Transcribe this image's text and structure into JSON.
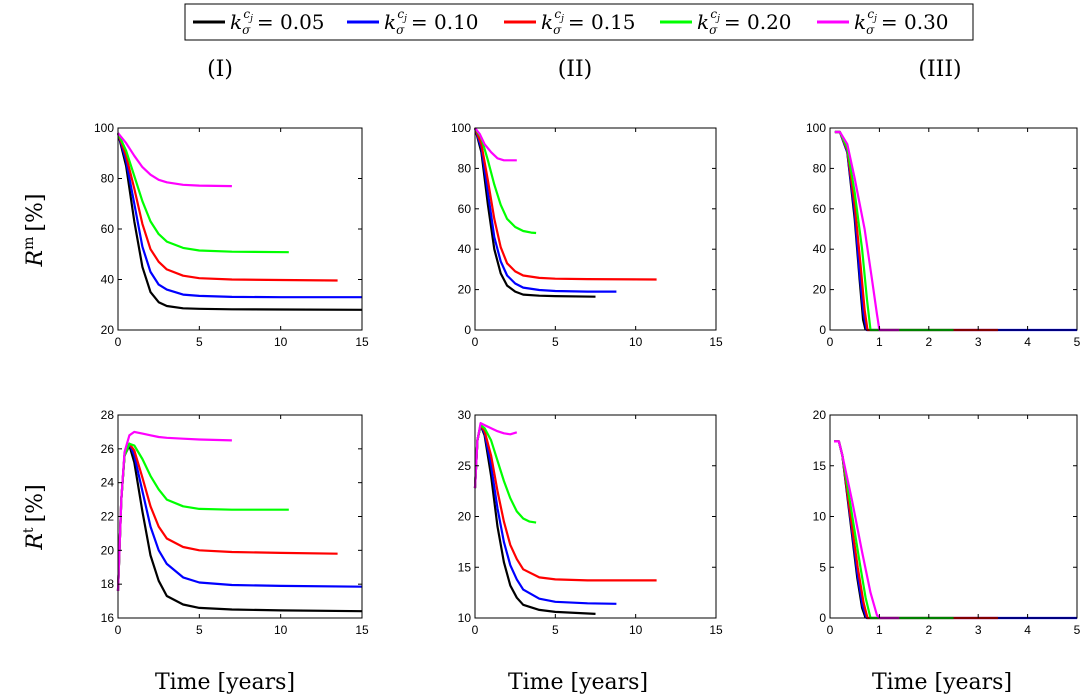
{
  "legend": {
    "entries": [
      {
        "label": "0.05",
        "color": "#000000"
      },
      {
        "label": "0.10",
        "color": "#0000ff"
      },
      {
        "label": "0.15",
        "color": "#ff0000"
      },
      {
        "label": "0.20",
        "color": "#00ff00"
      },
      {
        "label": "0.30",
        "color": "#ff00ff"
      }
    ]
  },
  "columns": [
    "(I)",
    "(II)",
    "(III)"
  ],
  "row_labels": [
    {
      "base": "R",
      "sup": "m",
      "unit": "[%]"
    },
    {
      "base": "R",
      "sup": "t",
      "unit": "[%]"
    }
  ],
  "x_labels": [
    "Time [years]",
    "Time [years]",
    "Time [years]"
  ],
  "chart_data": [
    {
      "type": "line",
      "panel": "I-Rm",
      "xlim": [
        0,
        15
      ],
      "ylim": [
        20,
        100
      ],
      "xticks": [
        0,
        5,
        10,
        15
      ],
      "yticks": [
        20,
        40,
        60,
        80,
        100
      ],
      "series": [
        {
          "name": "0.05",
          "color": "#000000",
          "x": [
            0,
            0.5,
            1,
            1.5,
            2,
            2.5,
            3,
            4,
            5,
            7,
            10,
            15
          ],
          "y": [
            98,
            85,
            63,
            45,
            35,
            31,
            29.5,
            28.6,
            28.4,
            28.2,
            28.1,
            28
          ]
        },
        {
          "name": "0.10",
          "color": "#0000ff",
          "x": [
            0,
            0.5,
            1,
            1.5,
            2,
            2.5,
            3,
            4,
            5,
            7,
            10,
            15
          ],
          "y": [
            98,
            87,
            70,
            53,
            43,
            38,
            36,
            34,
            33.5,
            33.1,
            33,
            33
          ]
        },
        {
          "name": "0.15",
          "color": "#ff0000",
          "x": [
            0,
            0.5,
            1,
            1.5,
            2,
            2.5,
            3,
            4,
            5,
            7,
            10,
            13.5
          ],
          "y": [
            98,
            89,
            76,
            62,
            52,
            47,
            44,
            41.5,
            40.5,
            40,
            39.8,
            39.6
          ]
        },
        {
          "name": "0.20",
          "color": "#00ff00",
          "x": [
            0,
            0.5,
            1,
            1.5,
            2,
            2.5,
            3,
            4,
            5,
            7,
            10.5
          ],
          "y": [
            98,
            91,
            81,
            71,
            63,
            58,
            55,
            52.5,
            51.5,
            51,
            50.8
          ]
        },
        {
          "name": "0.30",
          "color": "#ff00ff",
          "x": [
            0,
            0.5,
            1,
            1.5,
            2,
            2.5,
            3,
            4,
            5,
            7
          ],
          "y": [
            98,
            94,
            89,
            84.5,
            81.5,
            79.5,
            78.5,
            77.5,
            77.2,
            77
          ]
        }
      ]
    },
    {
      "type": "line",
      "panel": "II-Rm",
      "xlim": [
        0,
        15
      ],
      "ylim": [
        0,
        100
      ],
      "xticks": [
        0,
        5,
        10,
        15
      ],
      "yticks": [
        0,
        20,
        40,
        60,
        80,
        100
      ],
      "series": [
        {
          "name": "0.05",
          "color": "#000000",
          "x": [
            0,
            0.4,
            0.8,
            1.2,
            1.6,
            2,
            2.5,
            3,
            4,
            5,
            7.5
          ],
          "y": [
            100,
            88,
            62,
            40,
            28,
            22,
            19,
            17.5,
            17,
            16.8,
            16.5
          ]
        },
        {
          "name": "0.10",
          "color": "#0000ff",
          "x": [
            0,
            0.4,
            0.8,
            1.2,
            1.6,
            2,
            2.5,
            3,
            4,
            5,
            7,
            8.8
          ],
          "y": [
            100,
            90,
            68,
            46,
            34,
            27,
            23,
            21,
            19.8,
            19.3,
            19,
            19
          ]
        },
        {
          "name": "0.15",
          "color": "#ff0000",
          "x": [
            0,
            0.4,
            0.8,
            1.2,
            1.6,
            2,
            2.5,
            3,
            4,
            5,
            7,
            11.3
          ],
          "y": [
            100,
            92,
            74,
            55,
            41,
            33,
            29,
            27,
            25.8,
            25.4,
            25.2,
            25
          ]
        },
        {
          "name": "0.20",
          "color": "#00ff00",
          "x": [
            0,
            0.4,
            0.8,
            1.2,
            1.6,
            2,
            2.5,
            3,
            3.5,
            3.8
          ],
          "y": [
            100,
            95,
            84,
            72,
            62,
            55,
            51,
            49,
            48.2,
            48
          ]
        },
        {
          "name": "0.30",
          "color": "#ff00ff",
          "x": [
            0,
            0.3,
            0.6,
            1,
            1.4,
            1.8,
            2.2,
            2.6
          ],
          "y": [
            100,
            97,
            92,
            88,
            85,
            84,
            84,
            84
          ]
        }
      ]
    },
    {
      "type": "line",
      "panel": "III-Rm",
      "xlim": [
        0,
        5
      ],
      "ylim": [
        0,
        100
      ],
      "xticks": [
        0,
        1,
        2,
        3,
        4,
        5
      ],
      "yticks": [
        0,
        20,
        40,
        60,
        80,
        100
      ],
      "series": [
        {
          "name": "0.05",
          "color": "#000000",
          "x": [
            0.1,
            0.2,
            0.35,
            0.5,
            0.6,
            0.67,
            0.72
          ],
          "y": [
            98,
            98,
            88,
            55,
            25,
            5,
            0
          ]
        },
        {
          "name": "0.10",
          "color": "#0000ff",
          "x": [
            0.1,
            0.2,
            0.35,
            0.5,
            0.6,
            0.68,
            0.74,
            1.0,
            3.0,
            5.0
          ],
          "y": [
            98,
            98,
            88,
            58,
            28,
            8,
            0,
            0,
            0,
            0
          ]
        },
        {
          "name": "0.15",
          "color": "#ff0000",
          "x": [
            0.1,
            0.2,
            0.35,
            0.5,
            0.62,
            0.7,
            0.76,
            1.0,
            3.4
          ],
          "y": [
            98,
            98,
            89,
            62,
            32,
            10,
            0,
            0,
            0
          ]
        },
        {
          "name": "0.20",
          "color": "#00ff00",
          "x": [
            0.1,
            0.2,
            0.35,
            0.5,
            0.65,
            0.75,
            0.82,
            1.0,
            2.5
          ],
          "y": [
            98,
            98,
            90,
            68,
            40,
            15,
            0,
            0,
            0
          ]
        },
        {
          "name": "0.30",
          "color": "#ff00ff",
          "x": [
            0.1,
            0.2,
            0.35,
            0.5,
            0.7,
            0.85,
            0.95,
            1.0,
            1.4
          ],
          "y": [
            98,
            98,
            92,
            75,
            50,
            25,
            8,
            0,
            0
          ]
        }
      ]
    },
    {
      "type": "line",
      "panel": "I-Rt",
      "xlim": [
        0,
        15
      ],
      "ylim": [
        16,
        28
      ],
      "xticks": [
        0,
        5,
        10,
        15
      ],
      "yticks": [
        16,
        18,
        20,
        22,
        24,
        26,
        28
      ],
      "series": [
        {
          "name": "0.05",
          "color": "#000000",
          "x": [
            0,
            0.2,
            0.4,
            0.7,
            1,
            1.5,
            2,
            2.5,
            3,
            4,
            5,
            7,
            10,
            15
          ],
          "y": [
            17.6,
            23,
            25.6,
            26.2,
            25.2,
            22.3,
            19.7,
            18.2,
            17.3,
            16.8,
            16.6,
            16.5,
            16.45,
            16.4
          ]
        },
        {
          "name": "0.10",
          "color": "#0000ff",
          "x": [
            0,
            0.2,
            0.4,
            0.7,
            1,
            1.5,
            2,
            2.5,
            3,
            4,
            5,
            7,
            10,
            15
          ],
          "y": [
            17.6,
            23,
            25.6,
            26.3,
            25.6,
            23.5,
            21.4,
            20,
            19.2,
            18.4,
            18.1,
            17.95,
            17.9,
            17.85
          ]
        },
        {
          "name": "0.15",
          "color": "#ff0000",
          "x": [
            0,
            0.2,
            0.4,
            0.7,
            1,
            1.5,
            2,
            2.5,
            3,
            4,
            5,
            7,
            10,
            13.5
          ],
          "y": [
            17.6,
            23,
            25.6,
            26.3,
            25.9,
            24.3,
            22.6,
            21.4,
            20.7,
            20.2,
            20,
            19.9,
            19.85,
            19.8
          ]
        },
        {
          "name": "0.20",
          "color": "#00ff00",
          "x": [
            0,
            0.2,
            0.4,
            0.7,
            1,
            1.5,
            2,
            2.5,
            3,
            4,
            5,
            7,
            10.5
          ],
          "y": [
            17.6,
            23,
            25.6,
            26.3,
            26.2,
            25.4,
            24.4,
            23.6,
            23,
            22.6,
            22.45,
            22.4,
            22.4
          ]
        },
        {
          "name": "0.30",
          "color": "#ff00ff",
          "x": [
            0,
            0.2,
            0.4,
            0.7,
            1,
            1.5,
            2,
            2.5,
            3,
            4,
            5,
            7
          ],
          "y": [
            17.6,
            23,
            25.8,
            26.8,
            27,
            26.9,
            26.8,
            26.7,
            26.65,
            26.6,
            26.55,
            26.5
          ]
        }
      ]
    },
    {
      "type": "line",
      "panel": "II-Rt",
      "xlim": [
        0,
        15
      ],
      "ylim": [
        10,
        30
      ],
      "xticks": [
        0,
        5,
        10,
        15
      ],
      "yticks": [
        10,
        15,
        20,
        25,
        30
      ],
      "series": [
        {
          "name": "0.05",
          "color": "#000000",
          "x": [
            0,
            0.15,
            0.35,
            0.6,
            1,
            1.4,
            1.8,
            2.2,
            2.6,
            3,
            4,
            5,
            7.5
          ],
          "y": [
            22.8,
            27.5,
            29,
            28,
            24,
            19,
            15.5,
            13.2,
            12,
            11.3,
            10.8,
            10.6,
            10.4
          ]
        },
        {
          "name": "0.10",
          "color": "#0000ff",
          "x": [
            0,
            0.15,
            0.35,
            0.6,
            1,
            1.4,
            1.8,
            2.2,
            2.6,
            3,
            4,
            5,
            7,
            8.8
          ],
          "y": [
            22.8,
            27.5,
            29,
            28.2,
            25,
            20.8,
            17.5,
            15.2,
            13.8,
            12.8,
            11.9,
            11.6,
            11.45,
            11.4
          ]
        },
        {
          "name": "0.15",
          "color": "#ff0000",
          "x": [
            0,
            0.15,
            0.35,
            0.6,
            1,
            1.4,
            1.8,
            2.2,
            2.6,
            3,
            4,
            5,
            7,
            11.3
          ],
          "y": [
            22.8,
            27.5,
            29,
            28.4,
            26,
            22.5,
            19.5,
            17.2,
            15.8,
            14.8,
            14,
            13.8,
            13.7,
            13.7
          ]
        },
        {
          "name": "0.20",
          "color": "#00ff00",
          "x": [
            0,
            0.15,
            0.35,
            0.6,
            1,
            1.4,
            1.8,
            2.2,
            2.6,
            3,
            3.4,
            3.8
          ],
          "y": [
            22.8,
            27.5,
            29,
            28.7,
            27.5,
            25.5,
            23.5,
            21.8,
            20.5,
            19.8,
            19.5,
            19.4
          ]
        },
        {
          "name": "0.30",
          "color": "#ff00ff",
          "x": [
            0,
            0.15,
            0.35,
            0.6,
            1,
            1.4,
            1.8,
            2.2,
            2.6
          ],
          "y": [
            22.8,
            27.5,
            29.2,
            29,
            28.7,
            28.4,
            28.2,
            28.1,
            28.3
          ]
        }
      ]
    },
    {
      "type": "line",
      "panel": "III-Rt",
      "xlim": [
        0,
        5
      ],
      "ylim": [
        0,
        20
      ],
      "xticks": [
        0,
        1,
        2,
        3,
        4,
        5
      ],
      "yticks": [
        0,
        5,
        10,
        15,
        20
      ],
      "series": [
        {
          "name": "0.05",
          "color": "#000000",
          "x": [
            0.08,
            0.18,
            0.25,
            0.4,
            0.55,
            0.65,
            0.72
          ],
          "y": [
            17.4,
            17.4,
            16,
            10,
            4,
            1,
            0
          ]
        },
        {
          "name": "0.10",
          "color": "#0000ff",
          "x": [
            0.08,
            0.18,
            0.25,
            0.4,
            0.55,
            0.66,
            0.74,
            1,
            3,
            5
          ],
          "y": [
            17.4,
            17.4,
            16,
            10.3,
            4.5,
            1.2,
            0,
            0,
            0,
            0
          ]
        },
        {
          "name": "0.15",
          "color": "#ff0000",
          "x": [
            0.08,
            0.18,
            0.25,
            0.4,
            0.56,
            0.68,
            0.76,
            1,
            3.4
          ],
          "y": [
            17.4,
            17.4,
            16,
            10.6,
            5,
            1.5,
            0,
            0,
            0
          ]
        },
        {
          "name": "0.20",
          "color": "#00ff00",
          "x": [
            0.08,
            0.18,
            0.25,
            0.42,
            0.6,
            0.72,
            0.82,
            1,
            2.5
          ],
          "y": [
            17.4,
            17.4,
            16,
            11,
            5.5,
            2,
            0,
            0,
            0
          ]
        },
        {
          "name": "0.30",
          "color": "#ff00ff",
          "x": [
            0.08,
            0.18,
            0.25,
            0.45,
            0.65,
            0.82,
            0.95,
            1,
            1.4
          ],
          "y": [
            17.4,
            17.4,
            16,
            11.5,
            6.5,
            2.5,
            0.3,
            0,
            0
          ]
        }
      ]
    }
  ]
}
